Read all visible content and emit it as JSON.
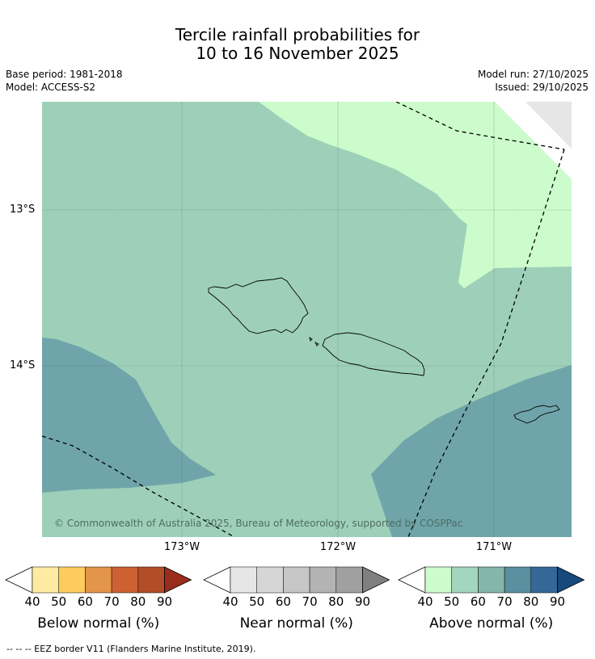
{
  "title_line1": "Tercile rainfall probabilities for",
  "title_line2": "10 to 16 November 2025",
  "meta": {
    "base_period": "Base period: 1981-2018",
    "model": "Model: ACCESS-S2",
    "model_run": "Model run: 27/10/2025",
    "issued": "Issued: 29/10/2025"
  },
  "map": {
    "lat_labels": [
      "13°S",
      "14°S"
    ],
    "lon_labels": [
      "173°W",
      "172°W",
      "171°W"
    ],
    "copyright": "© Commonwealth of Australia 2025, Bureau of Meteorology, supported by COSPPac",
    "colors": {
      "above_50": "#9ed0b9",
      "above_40": "#ccfccb",
      "above_60": "#6fa5aa",
      "no_data": "#e6e6e6",
      "land": "#000000",
      "eez": "#000000"
    }
  },
  "colorbars": [
    {
      "label": "Below normal (%)",
      "ticks": [
        "40",
        "50",
        "60",
        "70",
        "80",
        "90"
      ],
      "colors": [
        "#ffffff",
        "#feeba2",
        "#fecc5c",
        "#e3954a",
        "#cd6134",
        "#b24d29",
        "#982d1c"
      ]
    },
    {
      "label": "Near normal (%)",
      "ticks": [
        "40",
        "50",
        "60",
        "70",
        "80",
        "90"
      ],
      "colors": [
        "#ffffff",
        "#e6e6e6",
        "#d6d6d6",
        "#c6c6c6",
        "#b3b3b3",
        "#a0a0a0",
        "#808080"
      ]
    },
    {
      "label": "Above normal (%)",
      "ticks": [
        "40",
        "50",
        "60",
        "70",
        "80",
        "90"
      ],
      "colors": [
        "#ffffff",
        "#ccfccb",
        "#a2d6be",
        "#84b6ab",
        "#5a8fa0",
        "#346897",
        "#164a7d"
      ]
    }
  ],
  "footer": "--  --  -- EEZ border V11 (Flanders Marine Institute, 2019)."
}
